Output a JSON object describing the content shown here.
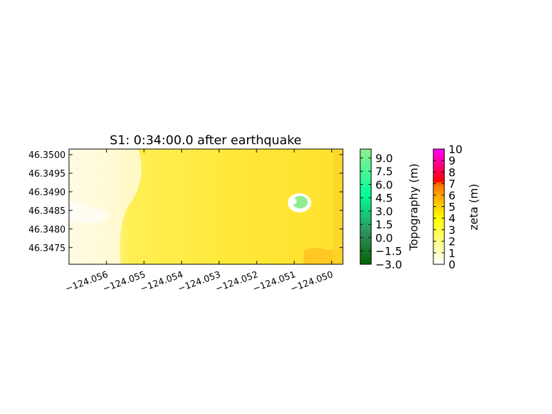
{
  "chart_data": [
    {
      "type": "heatmap",
      "title": "S1: 0:34:00.0 after earthquake",
      "xlabel": "",
      "ylabel": "",
      "xlim": [
        -124.057,
        -124.0497
      ],
      "ylim": [
        46.34705,
        46.35015
      ],
      "x_ticks": [
        -124.056,
        -124.055,
        -124.054,
        -124.053,
        -124.052,
        -124.051,
        -124.05
      ],
      "x_tick_labels": [
        "−124.056",
        "−124.055",
        "−124.054",
        "−124.053",
        "−124.052",
        "−124.051",
        "−124.050"
      ],
      "y_ticks": [
        46.3475,
        46.348,
        46.3485,
        46.349,
        46.3495,
        46.35
      ],
      "y_tick_labels": [
        "46.3475",
        "46.3480",
        "46.3485",
        "46.3490",
        "46.3495",
        "46.3500"
      ],
      "grid": false,
      "field_description_zeta_m": {
        "west_region": 1.5,
        "central_region": 3.8,
        "southeast_corner": 5.2
      },
      "island": {
        "lon": -124.0509,
        "lat": 46.34865,
        "topography_m": 7.5
      }
    },
    {
      "type": "colorbar",
      "label": "Topography (m)",
      "range": [
        -3.0,
        10.0
      ],
      "tick_values": [
        -3.0,
        -1.5,
        0.0,
        1.5,
        3.0,
        4.5,
        6.0,
        7.5,
        9.0
      ],
      "tick_labels": [
        "−3.0",
        "−1.5",
        "0.0",
        "1.5",
        "3.0",
        "4.5",
        "6.0",
        "7.5",
        "9.0"
      ],
      "colors": [
        "#006400",
        "#00ff99",
        "#90ee90"
      ]
    },
    {
      "type": "colorbar",
      "label": "zeta (m)",
      "range": [
        0,
        10
      ],
      "tick_values": [
        0,
        1,
        2,
        3,
        4,
        5,
        6,
        7,
        8,
        9,
        10
      ],
      "tick_labels": [
        "0",
        "1",
        "2",
        "3",
        "4",
        "5",
        "6",
        "7",
        "8",
        "9",
        "10"
      ],
      "colors": [
        "#ffffff",
        "#ffff00",
        "#ff8c00",
        "#ff0000",
        "#ff00ff"
      ]
    }
  ]
}
